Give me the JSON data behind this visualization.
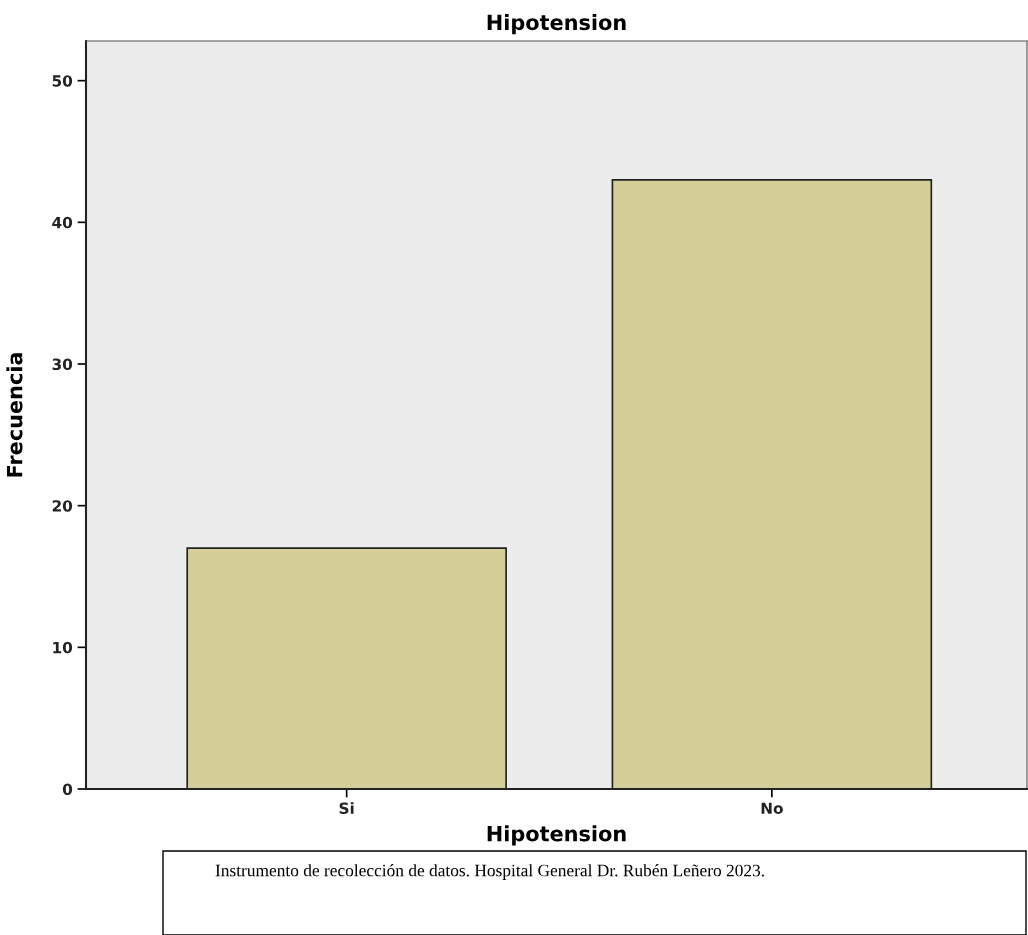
{
  "chart_data": {
    "type": "bar",
    "title": "Hipotension",
    "xlabel": "Hipotension",
    "ylabel": "Frecuencia",
    "categories": [
      "Si",
      "No"
    ],
    "values": [
      17,
      43
    ],
    "color": "#d3ce97",
    "ylim": [
      0,
      52.8
    ],
    "yticks": [
      0,
      10,
      20,
      30,
      40,
      50
    ],
    "grid": false,
    "legend": false,
    "annotations": [
      "Instrumento de recolección de datos. Hospital General Dr. Rubén Leñero 2023."
    ]
  }
}
